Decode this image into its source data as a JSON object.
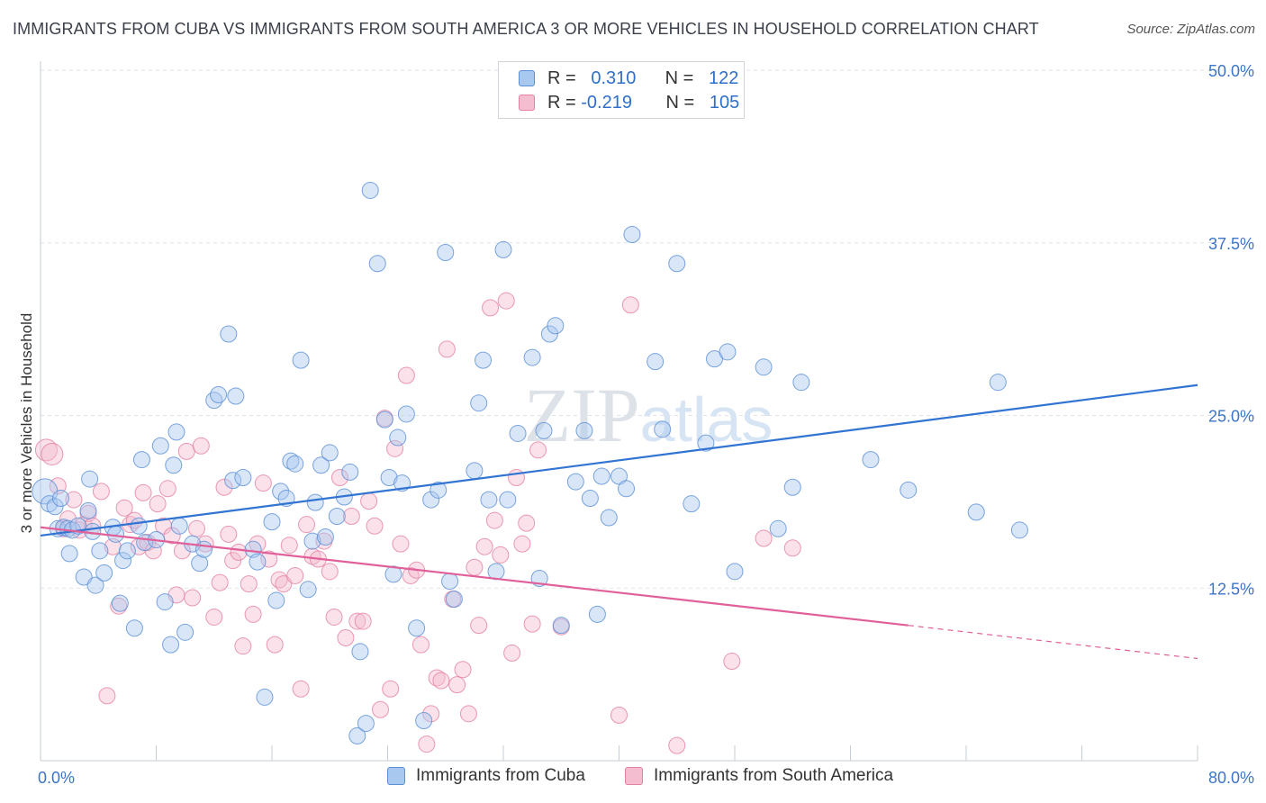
{
  "title": "IMMIGRANTS FROM CUBA VS IMMIGRANTS FROM SOUTH AMERICA 3 OR MORE VEHICLES IN HOUSEHOLD CORRELATION CHART",
  "source": "Source: ZipAtlas.com",
  "watermark": "ZIPatlas",
  "legend": {
    "row1": {
      "r_label": "R =",
      "r_value": "0.310",
      "n_label": "N =",
      "n_value": "122"
    },
    "row2": {
      "r_label": "R =",
      "r_value": "-0.219",
      "n_label": "N =",
      "n_value": "105"
    }
  },
  "bottom_legend": {
    "series1": "Immigrants from Cuba",
    "series2": "Immigrants from South America"
  },
  "colors": {
    "blue_fill": "#a9c8ef",
    "blue_stroke": "#5a8fd6",
    "blue_line": "#3274d2",
    "pink_fill": "#f5bdd0",
    "pink_stroke": "#e57fa3",
    "pink_line": "#e0609a",
    "axis_text": "#3d74c8",
    "grid": "#dfe3e8"
  },
  "chart_data": {
    "type": "scatter",
    "title": "IMMIGRANTS FROM CUBA VS IMMIGRANTS FROM SOUTH AMERICA 3 OR MORE VEHICLES IN HOUSEHOLD CORRELATION CHART",
    "xlabel": "",
    "ylabel": "3 or more Vehicles in Household",
    "xlim": [
      0,
      80
    ],
    "ylim": [
      0,
      50
    ],
    "x_tick_labels": [
      "0.0%",
      "80.0%"
    ],
    "y_ticks": [
      12.5,
      25.0,
      37.5,
      50.0
    ],
    "y_tick_labels": [
      "12.5%",
      "25.0%",
      "37.5%",
      "50.0%"
    ],
    "legend_position": "top-center",
    "series": [
      {
        "name": "Immigrants from Cuba",
        "r": 0.31,
        "n": 122,
        "trend": {
          "x0": 0,
          "y0": 16.3,
          "x1": 80,
          "y1": 27.2
        },
        "points": [
          [
            0.3,
            19.5
          ],
          [
            0.6,
            18.6
          ],
          [
            1.0,
            18.4
          ],
          [
            1.2,
            16.8
          ],
          [
            1.4,
            19.0
          ],
          [
            1.6,
            16.9
          ],
          [
            1.9,
            16.8
          ],
          [
            2.0,
            15.0
          ],
          [
            2.2,
            16.7
          ],
          [
            2.6,
            17.0
          ],
          [
            3.0,
            13.3
          ],
          [
            3.3,
            18.1
          ],
          [
            3.4,
            20.4
          ],
          [
            3.6,
            16.6
          ],
          [
            3.8,
            12.7
          ],
          [
            4.1,
            15.2
          ],
          [
            4.4,
            13.6
          ],
          [
            5.0,
            16.9
          ],
          [
            5.2,
            16.4
          ],
          [
            5.5,
            11.4
          ],
          [
            5.7,
            14.5
          ],
          [
            6.0,
            15.2
          ],
          [
            6.5,
            9.6
          ],
          [
            6.8,
            17.0
          ],
          [
            7.0,
            21.8
          ],
          [
            7.2,
            15.8
          ],
          [
            8.0,
            16.0
          ],
          [
            8.3,
            22.8
          ],
          [
            8.6,
            11.5
          ],
          [
            9.0,
            8.4
          ],
          [
            9.2,
            21.4
          ],
          [
            9.4,
            23.8
          ],
          [
            9.6,
            17.0
          ],
          [
            10.0,
            9.3
          ],
          [
            10.5,
            15.7
          ],
          [
            11.0,
            14.3
          ],
          [
            11.3,
            15.3
          ],
          [
            12.0,
            26.1
          ],
          [
            12.3,
            26.5
          ],
          [
            13.0,
            30.9
          ],
          [
            13.3,
            20.3
          ],
          [
            13.5,
            26.4
          ],
          [
            14.0,
            20.5
          ],
          [
            14.7,
            15.3
          ],
          [
            15.0,
            14.4
          ],
          [
            15.5,
            4.6
          ],
          [
            16.0,
            17.3
          ],
          [
            16.3,
            11.6
          ],
          [
            16.6,
            19.5
          ],
          [
            17.0,
            19.0
          ],
          [
            17.3,
            21.7
          ],
          [
            17.6,
            21.5
          ],
          [
            18.0,
            29.0
          ],
          [
            18.5,
            12.4
          ],
          [
            18.8,
            15.9
          ],
          [
            19.0,
            18.7
          ],
          [
            19.4,
            21.4
          ],
          [
            19.7,
            16.2
          ],
          [
            20.0,
            22.3
          ],
          [
            20.5,
            17.7
          ],
          [
            21.0,
            19.1
          ],
          [
            21.4,
            20.9
          ],
          [
            21.9,
            1.8
          ],
          [
            22.1,
            7.9
          ],
          [
            22.5,
            2.7
          ],
          [
            22.8,
            41.3
          ],
          [
            23.3,
            36.0
          ],
          [
            23.8,
            24.7
          ],
          [
            24.1,
            20.5
          ],
          [
            24.4,
            13.5
          ],
          [
            24.7,
            23.4
          ],
          [
            25.0,
            20.1
          ],
          [
            25.3,
            25.1
          ],
          [
            26.0,
            9.6
          ],
          [
            26.5,
            2.9
          ],
          [
            27.0,
            18.9
          ],
          [
            27.5,
            19.6
          ],
          [
            28.0,
            36.8
          ],
          [
            28.3,
            13.0
          ],
          [
            28.6,
            11.7
          ],
          [
            30.0,
            21.0
          ],
          [
            30.3,
            25.9
          ],
          [
            30.6,
            29.0
          ],
          [
            31.0,
            18.9
          ],
          [
            31.5,
            13.7
          ],
          [
            32.0,
            37.0
          ],
          [
            32.3,
            18.9
          ],
          [
            33.0,
            23.7
          ],
          [
            34.0,
            29.2
          ],
          [
            34.5,
            13.2
          ],
          [
            34.8,
            23.9
          ],
          [
            35.2,
            30.9
          ],
          [
            35.6,
            31.5
          ],
          [
            36.0,
            9.8
          ],
          [
            37.0,
            20.2
          ],
          [
            37.6,
            23.9
          ],
          [
            38.0,
            19.0
          ],
          [
            38.5,
            10.6
          ],
          [
            38.8,
            20.6
          ],
          [
            39.3,
            17.6
          ],
          [
            40.0,
            20.6
          ],
          [
            40.5,
            19.7
          ],
          [
            40.9,
            38.1
          ],
          [
            42.5,
            28.9
          ],
          [
            43.0,
            24.0
          ],
          [
            44.0,
            36.0
          ],
          [
            45.0,
            18.6
          ],
          [
            46.0,
            23.0
          ],
          [
            46.6,
            29.1
          ],
          [
            47.5,
            29.6
          ],
          [
            48.0,
            13.7
          ],
          [
            50.0,
            28.5
          ],
          [
            51.0,
            16.8
          ],
          [
            52.0,
            19.8
          ],
          [
            52.6,
            27.4
          ],
          [
            57.4,
            21.8
          ],
          [
            60.0,
            19.6
          ],
          [
            64.7,
            18.0
          ],
          [
            66.2,
            27.4
          ],
          [
            67.7,
            16.7
          ]
        ]
      },
      {
        "name": "Immigrants from South America",
        "r": -0.219,
        "n": 105,
        "trend": {
          "x0": 0,
          "y0": 16.9,
          "x1": 60,
          "y1": 9.8,
          "dashed_to": {
            "x": 80,
            "y": 7.4
          }
        },
        "points": [
          [
            0.4,
            22.5
          ],
          [
            0.8,
            22.2
          ],
          [
            1.2,
            19.9
          ],
          [
            1.6,
            16.8
          ],
          [
            1.9,
            17.5
          ],
          [
            2.3,
            18.9
          ],
          [
            2.7,
            16.7
          ],
          [
            3.0,
            17.1
          ],
          [
            3.3,
            17.9
          ],
          [
            3.6,
            17.0
          ],
          [
            4.2,
            19.5
          ],
          [
            4.6,
            4.7
          ],
          [
            5.0,
            15.5
          ],
          [
            5.4,
            11.2
          ],
          [
            5.8,
            18.3
          ],
          [
            6.2,
            17.1
          ],
          [
            6.5,
            17.4
          ],
          [
            6.8,
            15.5
          ],
          [
            7.1,
            19.4
          ],
          [
            7.4,
            15.8
          ],
          [
            7.8,
            15.2
          ],
          [
            8.1,
            18.6
          ],
          [
            8.5,
            17.0
          ],
          [
            8.8,
            19.7
          ],
          [
            9.1,
            16.3
          ],
          [
            9.4,
            12.0
          ],
          [
            9.8,
            15.2
          ],
          [
            10.1,
            22.4
          ],
          [
            10.5,
            11.8
          ],
          [
            10.8,
            16.8
          ],
          [
            11.1,
            22.8
          ],
          [
            11.4,
            15.7
          ],
          [
            12.0,
            10.4
          ],
          [
            12.4,
            12.9
          ],
          [
            12.7,
            19.8
          ],
          [
            13.0,
            16.4
          ],
          [
            13.3,
            14.5
          ],
          [
            13.7,
            15.1
          ],
          [
            14.0,
            8.3
          ],
          [
            14.4,
            12.8
          ],
          [
            14.7,
            10.6
          ],
          [
            15.0,
            15.7
          ],
          [
            15.4,
            20.1
          ],
          [
            15.8,
            14.6
          ],
          [
            16.2,
            8.4
          ],
          [
            16.5,
            13.1
          ],
          [
            16.8,
            12.8
          ],
          [
            17.2,
            15.6
          ],
          [
            17.6,
            13.4
          ],
          [
            18.0,
            5.2
          ],
          [
            18.4,
            17.1
          ],
          [
            18.8,
            14.8
          ],
          [
            19.2,
            14.6
          ],
          [
            19.6,
            15.9
          ],
          [
            20.0,
            13.7
          ],
          [
            20.3,
            10.4
          ],
          [
            20.7,
            20.5
          ],
          [
            21.1,
            8.9
          ],
          [
            21.5,
            17.7
          ],
          [
            21.9,
            10.1
          ],
          [
            22.3,
            10.1
          ],
          [
            22.7,
            18.8
          ],
          [
            23.1,
            17.0
          ],
          [
            23.5,
            3.7
          ],
          [
            23.8,
            24.8
          ],
          [
            24.2,
            5.2
          ],
          [
            24.5,
            22.6
          ],
          [
            24.9,
            15.7
          ],
          [
            25.3,
            27.9
          ],
          [
            25.6,
            13.4
          ],
          [
            26.0,
            13.8
          ],
          [
            26.3,
            8.4
          ],
          [
            26.7,
            1.2
          ],
          [
            27.0,
            3.4
          ],
          [
            27.4,
            6.0
          ],
          [
            27.7,
            5.8
          ],
          [
            28.1,
            29.8
          ],
          [
            28.5,
            11.7
          ],
          [
            28.8,
            5.5
          ],
          [
            29.2,
            6.6
          ],
          [
            29.6,
            3.4
          ],
          [
            30.0,
            14.0
          ],
          [
            30.3,
            9.8
          ],
          [
            30.7,
            15.5
          ],
          [
            31.1,
            32.8
          ],
          [
            31.4,
            17.4
          ],
          [
            31.8,
            14.9
          ],
          [
            32.2,
            33.3
          ],
          [
            32.6,
            7.8
          ],
          [
            32.9,
            20.5
          ],
          [
            33.3,
            15.7
          ],
          [
            33.6,
            17.2
          ],
          [
            34.0,
            9.9
          ],
          [
            34.4,
            22.5
          ],
          [
            36.0,
            9.7
          ],
          [
            40.0,
            3.3
          ],
          [
            40.8,
            33.0
          ],
          [
            44.0,
            1.1
          ],
          [
            47.8,
            7.2
          ],
          [
            50.0,
            16.1
          ],
          [
            52.0,
            15.4
          ]
        ]
      }
    ]
  }
}
